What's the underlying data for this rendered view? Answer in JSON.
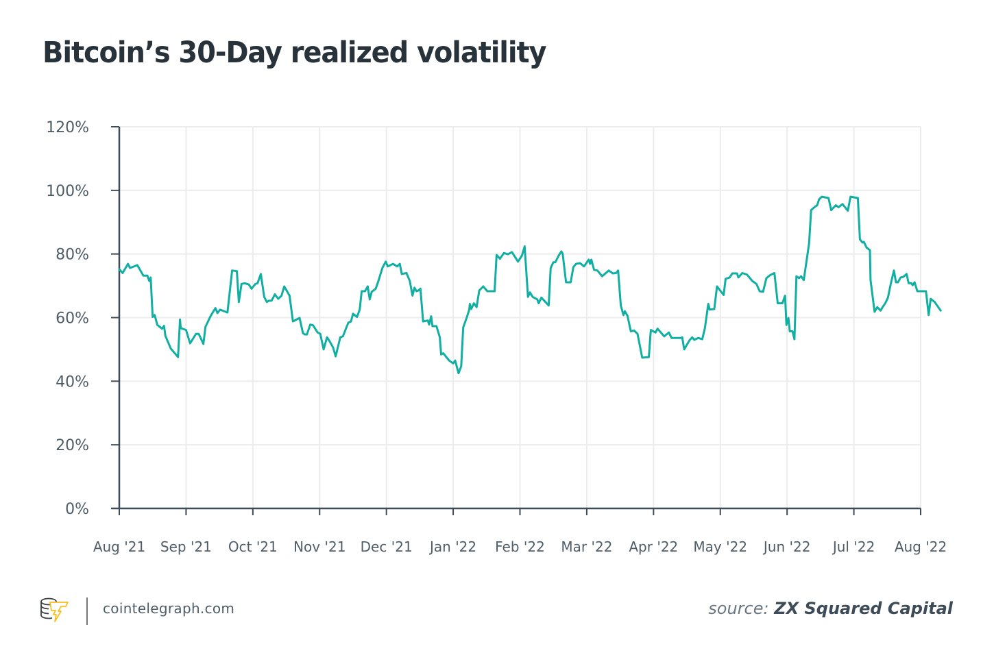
{
  "title": "Bitcoin’s 30-Day realized volatility",
  "footer": {
    "site": "cointelegraph.com",
    "source_label": "source:",
    "source_name": "ZX Squared Capital",
    "logo_icon": "cointelegraph-logo-icon"
  },
  "colors": {
    "line": "#10aea3",
    "axis": "#3e4c57",
    "grid": "#ececec",
    "text": "#4f5d68",
    "title": "#27323a",
    "logo_accent": "#f5bf21"
  },
  "chart_data": {
    "type": "line",
    "title": "Bitcoin’s 30-Day realized volatility",
    "xlabel": "",
    "ylabel": "",
    "ylim": [
      0,
      120
    ],
    "yticks": [
      0,
      20,
      40,
      60,
      80,
      100,
      120
    ],
    "ytick_labels": [
      "0%",
      "20%",
      "40%",
      "60%",
      "80%",
      "100%",
      "120%"
    ],
    "xlim_months": [
      0,
      12
    ],
    "xtick_labels": [
      "Aug '21",
      "Sep '21",
      "Oct '21",
      "Nov '21",
      "Dec '21",
      "Jan '22",
      "Feb '22",
      "Mar '22",
      "Apr '22",
      "May '22",
      "Jun '22",
      "Jul '22",
      "Aug '22"
    ],
    "grid": true,
    "legend": "none",
    "series": [
      {
        "name": "30-Day realized volatility (%)",
        "x_unit": "months since Aug '21",
        "points": [
          [
            0.0,
            75.2
          ],
          [
            0.05,
            74.0
          ],
          [
            0.13,
            76.9
          ],
          [
            0.16,
            75.6
          ],
          [
            0.27,
            76.5
          ],
          [
            0.36,
            73.2
          ],
          [
            0.42,
            73.2
          ],
          [
            0.45,
            71.5
          ],
          [
            0.47,
            72.6
          ],
          [
            0.5,
            60.2
          ],
          [
            0.53,
            60.8
          ],
          [
            0.57,
            57.7
          ],
          [
            0.64,
            56.5
          ],
          [
            0.67,
            57.4
          ],
          [
            0.69,
            54.3
          ],
          [
            0.77,
            50.3
          ],
          [
            0.88,
            47.6
          ],
          [
            0.91,
            59.4
          ],
          [
            0.92,
            56.7
          ],
          [
            1.0,
            56.1
          ],
          [
            1.06,
            51.9
          ],
          [
            1.15,
            54.9
          ],
          [
            1.19,
            54.9
          ],
          [
            1.26,
            51.7
          ],
          [
            1.29,
            57.1
          ],
          [
            1.37,
            60.6
          ],
          [
            1.44,
            63.0
          ],
          [
            1.47,
            61.4
          ],
          [
            1.51,
            62.5
          ],
          [
            1.62,
            61.6
          ],
          [
            1.69,
            74.8
          ],
          [
            1.76,
            74.6
          ],
          [
            1.79,
            64.9
          ],
          [
            1.83,
            70.6
          ],
          [
            1.88,
            70.8
          ],
          [
            1.94,
            70.4
          ],
          [
            1.98,
            69.1
          ],
          [
            2.04,
            70.6
          ],
          [
            2.07,
            70.8
          ],
          [
            2.12,
            73.7
          ],
          [
            2.17,
            66.5
          ],
          [
            2.21,
            64.9
          ],
          [
            2.24,
            65.3
          ],
          [
            2.28,
            65.3
          ],
          [
            2.33,
            67.3
          ],
          [
            2.38,
            65.9
          ],
          [
            2.43,
            66.9
          ],
          [
            2.47,
            69.8
          ],
          [
            2.55,
            66.9
          ],
          [
            2.6,
            58.8
          ],
          [
            2.7,
            59.9
          ],
          [
            2.75,
            55.1
          ],
          [
            2.78,
            54.7
          ],
          [
            2.81,
            54.7
          ],
          [
            2.86,
            57.8
          ],
          [
            2.9,
            57.6
          ],
          [
            2.97,
            55.3
          ],
          [
            3.01,
            54.9
          ],
          [
            3.06,
            50.0
          ],
          [
            3.11,
            53.8
          ],
          [
            3.14,
            52.9
          ],
          [
            3.2,
            50.7
          ],
          [
            3.24,
            47.8
          ],
          [
            3.31,
            53.8
          ],
          [
            3.35,
            54.1
          ],
          [
            3.39,
            56.3
          ],
          [
            3.43,
            58.4
          ],
          [
            3.47,
            58.8
          ],
          [
            3.5,
            61.2
          ],
          [
            3.56,
            60.2
          ],
          [
            3.6,
            62.5
          ],
          [
            3.63,
            68.3
          ],
          [
            3.68,
            68.3
          ],
          [
            3.72,
            69.8
          ],
          [
            3.75,
            65.7
          ],
          [
            3.78,
            68.1
          ],
          [
            3.84,
            69.1
          ],
          [
            3.88,
            71.5
          ],
          [
            3.94,
            75.6
          ],
          [
            3.99,
            77.6
          ],
          [
            4.02,
            76.1
          ],
          [
            4.1,
            76.9
          ],
          [
            4.16,
            76.1
          ],
          [
            4.2,
            76.9
          ],
          [
            4.23,
            73.7
          ],
          [
            4.3,
            74.0
          ],
          [
            4.35,
            71.5
          ],
          [
            4.39,
            66.9
          ],
          [
            4.42,
            69.4
          ],
          [
            4.45,
            68.3
          ],
          [
            4.48,
            68.5
          ],
          [
            4.51,
            69.1
          ],
          [
            4.55,
            58.8
          ],
          [
            4.62,
            59.1
          ],
          [
            4.64,
            57.8
          ],
          [
            4.67,
            60.4
          ],
          [
            4.69,
            57.3
          ],
          [
            4.75,
            57.3
          ],
          [
            4.8,
            53.8
          ],
          [
            4.82,
            48.4
          ],
          [
            4.85,
            48.8
          ],
          [
            4.94,
            46.5
          ],
          [
            5.0,
            45.6
          ],
          [
            5.03,
            46.5
          ],
          [
            5.08,
            42.5
          ],
          [
            5.12,
            44.7
          ],
          [
            5.15,
            56.9
          ],
          [
            5.21,
            60.4
          ],
          [
            5.24,
            62.5
          ],
          [
            5.25,
            64.3
          ],
          [
            5.27,
            62.7
          ],
          [
            5.31,
            64.5
          ],
          [
            5.35,
            63.3
          ],
          [
            5.39,
            68.5
          ],
          [
            5.45,
            69.8
          ],
          [
            5.51,
            68.3
          ],
          [
            5.62,
            68.3
          ],
          [
            5.65,
            79.7
          ],
          [
            5.7,
            78.5
          ],
          [
            5.76,
            80.3
          ],
          [
            5.82,
            79.9
          ],
          [
            5.88,
            80.6
          ],
          [
            5.97,
            77.6
          ],
          [
            6.03,
            79.5
          ],
          [
            6.07,
            82.4
          ],
          [
            6.12,
            66.5
          ],
          [
            6.15,
            67.9
          ],
          [
            6.19,
            66.5
          ],
          [
            6.26,
            65.7
          ],
          [
            6.28,
            64.5
          ],
          [
            6.32,
            66.3
          ],
          [
            6.43,
            63.8
          ],
          [
            6.46,
            75.6
          ],
          [
            6.5,
            77.4
          ],
          [
            6.53,
            77.4
          ],
          [
            6.58,
            79.5
          ],
          [
            6.62,
            80.8
          ],
          [
            6.64,
            80.1
          ],
          [
            6.69,
            71.1
          ],
          [
            6.76,
            71.1
          ],
          [
            6.8,
            75.9
          ],
          [
            6.84,
            76.9
          ],
          [
            6.9,
            77.1
          ],
          [
            6.96,
            76.1
          ],
          [
            7.03,
            78.2
          ],
          [
            7.05,
            76.9
          ],
          [
            7.07,
            78.2
          ],
          [
            7.11,
            75.0
          ],
          [
            7.16,
            74.8
          ],
          [
            7.23,
            73.0
          ],
          [
            7.33,
            74.8
          ],
          [
            7.39,
            73.9
          ],
          [
            7.44,
            74.0
          ],
          [
            7.47,
            74.8
          ],
          [
            7.51,
            63.8
          ],
          [
            7.55,
            60.8
          ],
          [
            7.57,
            62.0
          ],
          [
            7.61,
            60.6
          ],
          [
            7.66,
            55.7
          ],
          [
            7.71,
            55.9
          ],
          [
            7.76,
            54.9
          ],
          [
            7.83,
            47.4
          ],
          [
            7.93,
            47.6
          ],
          [
            7.96,
            56.1
          ],
          [
            8.03,
            55.3
          ],
          [
            8.06,
            56.5
          ],
          [
            8.16,
            54.1
          ],
          [
            8.23,
            55.3
          ],
          [
            8.27,
            53.6
          ],
          [
            8.37,
            53.6
          ],
          [
            8.41,
            53.6
          ],
          [
            8.43,
            53.8
          ],
          [
            8.46,
            50.0
          ],
          [
            8.54,
            52.9
          ],
          [
            8.58,
            53.8
          ],
          [
            8.61,
            53.0
          ],
          [
            8.67,
            53.6
          ],
          [
            8.73,
            53.2
          ],
          [
            8.77,
            56.7
          ],
          [
            8.82,
            64.3
          ],
          [
            8.84,
            62.5
          ],
          [
            8.91,
            62.7
          ],
          [
            8.95,
            69.8
          ],
          [
            9.05,
            67.1
          ],
          [
            9.08,
            72.2
          ],
          [
            9.14,
            72.6
          ],
          [
            9.18,
            73.9
          ],
          [
            9.25,
            73.9
          ],
          [
            9.27,
            72.6
          ],
          [
            9.33,
            74.0
          ],
          [
            9.4,
            73.5
          ],
          [
            9.48,
            71.5
          ],
          [
            9.54,
            70.6
          ],
          [
            9.59,
            68.3
          ],
          [
            9.64,
            68.1
          ],
          [
            9.69,
            72.4
          ],
          [
            9.75,
            73.4
          ],
          [
            9.81,
            74.0
          ],
          [
            9.86,
            64.5
          ],
          [
            9.93,
            64.5
          ],
          [
            9.97,
            66.9
          ],
          [
            9.99,
            57.7
          ],
          [
            10.02,
            59.9
          ],
          [
            10.04,
            55.7
          ],
          [
            10.08,
            55.7
          ],
          [
            10.11,
            53.2
          ],
          [
            10.14,
            73.0
          ],
          [
            10.18,
            72.4
          ],
          [
            10.21,
            73.0
          ],
          [
            10.25,
            71.8
          ],
          [
            10.33,
            83.4
          ],
          [
            10.36,
            93.8
          ],
          [
            10.42,
            94.9
          ],
          [
            10.45,
            95.3
          ],
          [
            10.48,
            97.2
          ],
          [
            10.52,
            98.0
          ],
          [
            10.62,
            97.6
          ],
          [
            10.66,
            93.8
          ],
          [
            10.73,
            95.3
          ],
          [
            10.77,
            94.7
          ],
          [
            10.83,
            95.7
          ],
          [
            10.86,
            94.9
          ],
          [
            10.91,
            93.6
          ],
          [
            10.95,
            98.0
          ],
          [
            11.06,
            97.6
          ],
          [
            11.09,
            84.6
          ],
          [
            11.13,
            83.6
          ],
          [
            11.15,
            83.8
          ],
          [
            11.19,
            82.0
          ],
          [
            11.24,
            81.2
          ],
          [
            11.25,
            71.8
          ],
          [
            11.31,
            61.8
          ],
          [
            11.35,
            63.3
          ],
          [
            11.4,
            62.2
          ],
          [
            11.43,
            63.3
          ],
          [
            11.47,
            64.5
          ],
          [
            11.51,
            66.3
          ],
          [
            11.55,
            70.4
          ],
          [
            11.6,
            74.8
          ],
          [
            11.63,
            71.1
          ],
          [
            11.66,
            71.1
          ],
          [
            11.7,
            72.6
          ],
          [
            11.74,
            72.8
          ],
          [
            11.79,
            73.7
          ],
          [
            11.82,
            70.8
          ],
          [
            11.86,
            70.8
          ],
          [
            11.88,
            70.2
          ],
          [
            11.91,
            71.1
          ],
          [
            11.95,
            68.3
          ],
          [
            12.08,
            68.3
          ],
          [
            12.12,
            60.8
          ],
          [
            12.15,
            65.9
          ],
          [
            12.21,
            64.9
          ],
          [
            12.3,
            62.2
          ]
        ]
      }
    ]
  }
}
